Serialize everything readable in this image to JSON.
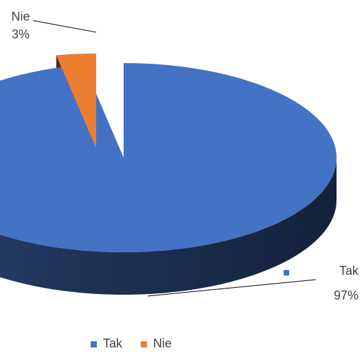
{
  "chart_data": {
    "type": "pie",
    "title": "",
    "categories": [
      "Tak",
      "Nie"
    ],
    "values": [
      97,
      3
    ],
    "data_labels": [
      "97%",
      "3%"
    ],
    "colors": [
      "#4472C4",
      "#ED7D31"
    ],
    "legend": {
      "placement": "bottom",
      "entries": [
        "Tak",
        "Nie"
      ]
    },
    "style": "3d-exploded"
  }
}
